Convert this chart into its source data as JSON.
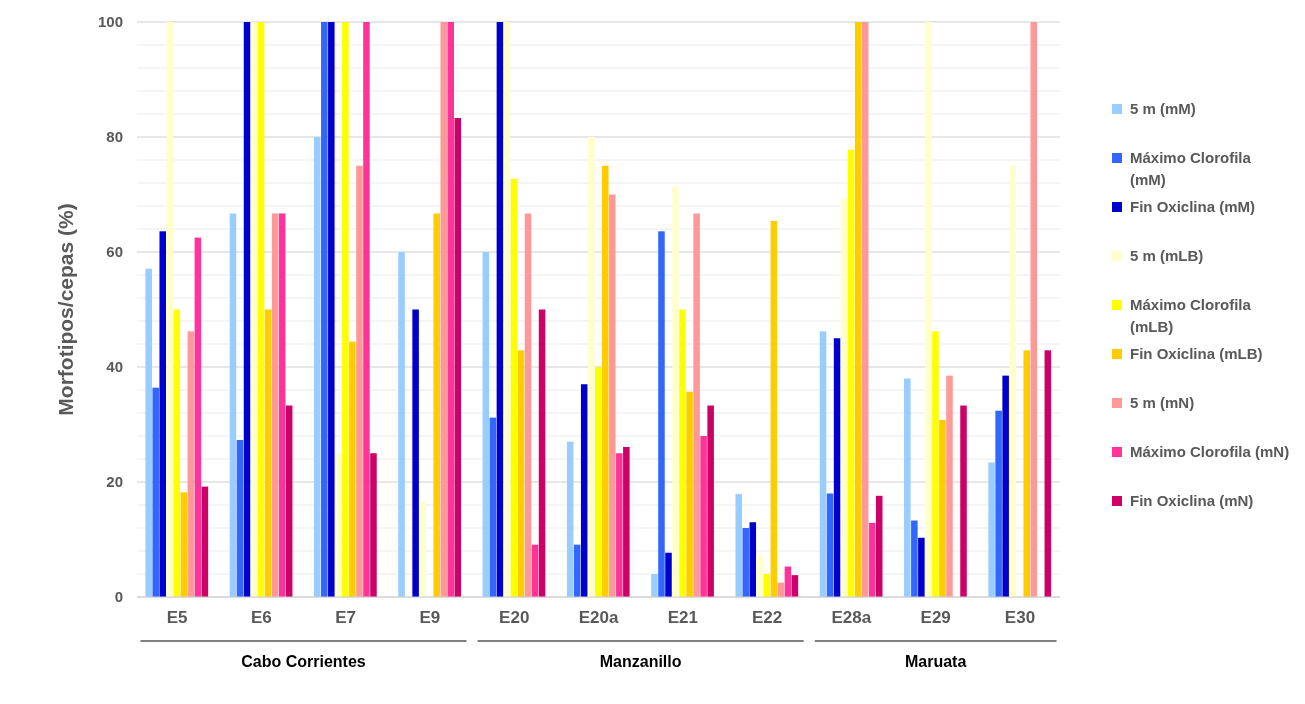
{
  "chart_data": {
    "type": "bar",
    "ylabel": "Morfotipos/cepas (%)",
    "categories": [
      "E5",
      "E6",
      "E7",
      "E9",
      "E20",
      "E20a",
      "E21",
      "E22",
      "E28a",
      "E29",
      "E30"
    ],
    "series": [
      {
        "name": "5 m (mM)",
        "color": "#99ccff",
        "values": [
          57.1,
          66.7,
          80,
          60,
          60,
          27,
          4,
          17.9,
          46.2,
          38,
          23.4
        ]
      },
      {
        "name": "Máximo Clorofila (mM)",
        "color": "#3366ff",
        "values": [
          36.4,
          27.3,
          100,
          0,
          31.2,
          9.1,
          63.6,
          12,
          18,
          13.3,
          32.4
        ]
      },
      {
        "name": "Fin Oxiclina (mM)",
        "color": "#0000cc",
        "values": [
          63.6,
          100,
          100,
          50,
          100,
          37,
          7.7,
          13,
          45,
          10.3,
          38.5
        ]
      },
      {
        "name": "5 m (mLB)",
        "color": "#ffffcc",
        "values": [
          100,
          100,
          25,
          16.7,
          100,
          80,
          71.4,
          7.3,
          69.2,
          100,
          75
        ]
      },
      {
        "name": "Máximo Clorofila (mLB)",
        "color": "#ffff00",
        "values": [
          50,
          100,
          100,
          0,
          72.7,
          40,
          50,
          4,
          77.8,
          46.2,
          0
        ]
      },
      {
        "name": "Fin Oxiclina (mLB)",
        "color": "#ffcc00",
        "values": [
          18.2,
          50,
          44.4,
          66.7,
          42.9,
          75,
          35.7,
          65.4,
          100,
          30.8,
          42.9
        ]
      },
      {
        "name": "5 m (mN)",
        "color": "#ff9999",
        "values": [
          46.2,
          66.7,
          75,
          100,
          66.7,
          70,
          66.7,
          2.5,
          100,
          38.5,
          100
        ]
      },
      {
        "name": "Máximo Clorofila (mN)",
        "color": "#ff3399",
        "values": [
          62.5,
          66.7,
          100,
          100,
          9.1,
          25,
          28,
          5.3,
          12.9,
          0,
          0
        ]
      },
      {
        "name": "Fin Oxiclina (mN)",
        "color": "#cc0066",
        "values": [
          19.2,
          33.3,
          25,
          83.3,
          50,
          26.1,
          33.3,
          3.8,
          17.6,
          33.3,
          42.9
        ]
      }
    ],
    "ylim": [
      0,
      100
    ],
    "yticks": [
      0,
      {
        "value": 4,
        "label": null
      },
      {
        "value": 8,
        "label": null
      },
      {
        "value": 12,
        "label": null
      },
      {
        "value": 16,
        "label": null
      },
      20,
      {
        "value": 24,
        "label": null
      },
      {
        "value": 28,
        "label": null
      },
      {
        "value": 32,
        "label": null
      },
      {
        "value": 36,
        "label": null
      },
      40,
      {
        "value": 44,
        "label": null
      },
      {
        "value": 48,
        "label": null
      },
      {
        "value": 52,
        "label": null
      },
      {
        "value": 56,
        "label": null
      },
      60,
      {
        "value": 64,
        "label": null
      },
      {
        "value": 68,
        "label": null
      },
      {
        "value": 72,
        "label": null
      },
      {
        "value": 76,
        "label": null
      },
      80,
      {
        "value": 84,
        "label": null
      },
      {
        "value": 88,
        "label": null
      },
      {
        "value": 92,
        "label": null
      },
      {
        "value": 96,
        "label": null
      },
      100
    ],
    "grid": "y",
    "legend": "right",
    "annotations": [
      "Cabo Corrientes",
      "Manzanillo",
      "Maruata"
    ]
  }
}
